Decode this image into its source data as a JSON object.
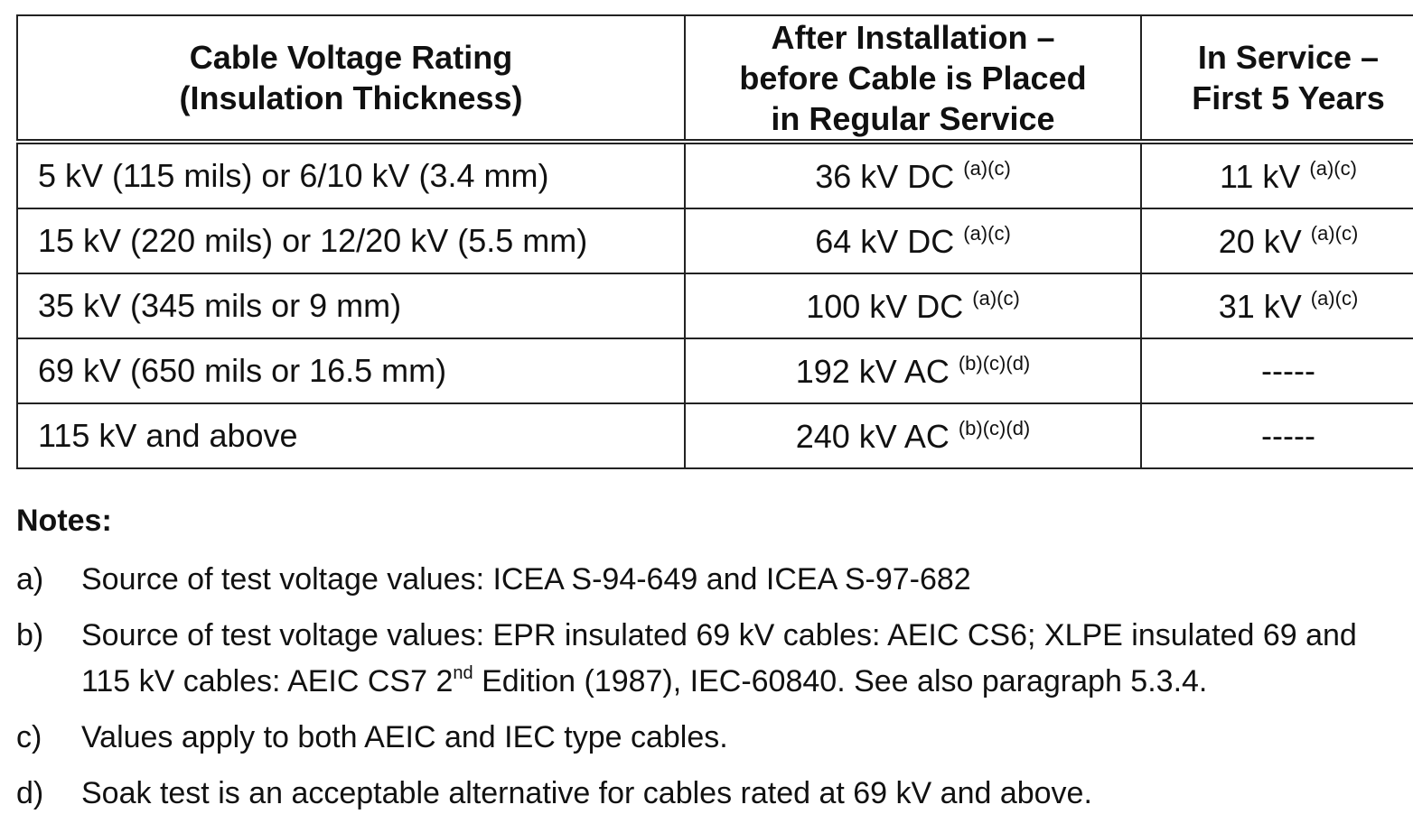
{
  "table": {
    "headers": [
      [
        "Cable Voltage Rating",
        "(Insulation Thickness)"
      ],
      [
        "After Installation –",
        "before Cable is Placed",
        "in Regular Service"
      ],
      [
        "In Service –",
        "First 5 Years"
      ]
    ],
    "rows": [
      [
        {
          "text": "5 kV (115 mils) or 6/10 kV (3.4 mm)"
        },
        {
          "text": "36 kV DC",
          "note": "(a)(c)"
        },
        {
          "text": "11 kV",
          "note": "(a)(c)"
        }
      ],
      [
        {
          "text": "15 kV (220 mils) or 12/20 kV (5.5 mm)"
        },
        {
          "text": "64 kV DC",
          "note": "(a)(c)"
        },
        {
          "text": "20 kV",
          "note": "(a)(c)"
        }
      ],
      [
        {
          "text": "35 kV (345 mils or 9 mm)"
        },
        {
          "text": "100 kV DC",
          "note": "(a)(c)"
        },
        {
          "text": "31 kV",
          "note": "(a)(c)"
        }
      ],
      [
        {
          "text": "69 kV (650 mils or 16.5 mm)"
        },
        {
          "text": "192 kV AC",
          "note": "(b)(c)(d)"
        },
        {
          "text": "-----"
        }
      ],
      [
        {
          "text": "115 kV and above"
        },
        {
          "text": "240 kV AC",
          "note": "(b)(c)(d)"
        },
        {
          "text": "-----"
        }
      ]
    ]
  },
  "notes": {
    "title": "Notes:",
    "items": [
      {
        "label": "a)",
        "parts": [
          {
            "text": "Source of test voltage values: ICEA S-94-649 and ICEA S-97-682"
          }
        ]
      },
      {
        "label": "b)",
        "parts": [
          {
            "text": "Source of test voltage values: EPR insulated 69 kV cables: AEIC CS6; XLPE insulated 69 and 115 kV cables: AEIC CS7 2"
          },
          {
            "sup": "nd"
          },
          {
            "text": " Edition (1987), IEC-60840.  See also paragraph 5.3.4."
          }
        ]
      },
      {
        "label": "c)",
        "parts": [
          {
            "text": "Values apply to both AEIC and IEC type cables."
          }
        ]
      },
      {
        "label": "d)",
        "parts": [
          {
            "text": "Soak test is an acceptable alternative for cables rated at 69 kV and above."
          }
        ]
      }
    ]
  }
}
